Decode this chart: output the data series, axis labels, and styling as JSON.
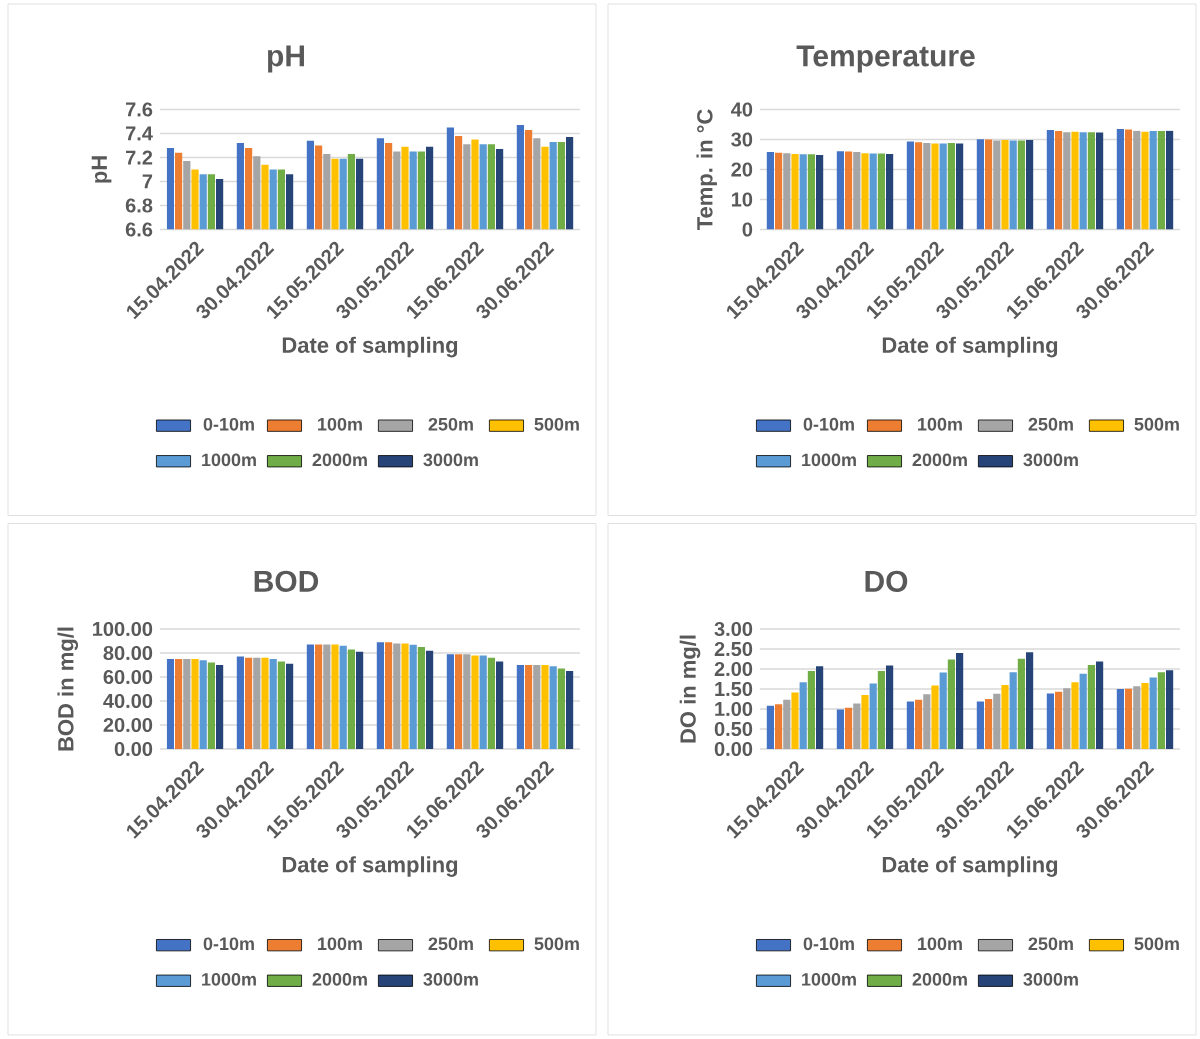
{
  "chart_data": [
    {
      "type": "bar",
      "title": "pH",
      "xlabel": "Date of sampling",
      "ylabel": "pH",
      "categories": [
        "15.04.2022",
        "30.04.2022",
        "15.05.2022",
        "30.05.2022",
        "15.06.2022",
        "30.06.2022"
      ],
      "ylim": [
        6.6,
        7.6
      ],
      "yticks": [
        6.6,
        6.8,
        7,
        7.2,
        7.4,
        7.6
      ],
      "grid": "y",
      "legend": "bottom",
      "series": [
        {
          "name": "0-10m",
          "color": "#4472c4",
          "values": [
            7.28,
            7.32,
            7.34,
            7.36,
            7.45,
            7.47
          ]
        },
        {
          "name": "100m",
          "color": "#ed7d31",
          "values": [
            7.24,
            7.28,
            7.3,
            7.32,
            7.38,
            7.43
          ]
        },
        {
          "name": "250m",
          "color": "#a5a5a5",
          "values": [
            7.17,
            7.21,
            7.23,
            7.25,
            7.31,
            7.36
          ]
        },
        {
          "name": "500m",
          "color": "#ffc000",
          "values": [
            7.1,
            7.14,
            7.19,
            7.29,
            7.35,
            7.29
          ]
        },
        {
          "name": "1000m",
          "color": "#5b9bd5",
          "values": [
            7.06,
            7.1,
            7.19,
            7.25,
            7.31,
            7.33
          ]
        },
        {
          "name": "2000m",
          "color": "#70ad47",
          "values": [
            7.06,
            7.1,
            7.23,
            7.25,
            7.31,
            7.33
          ]
        },
        {
          "name": "3000m",
          "color": "#264478",
          "values": [
            7.02,
            7.06,
            7.19,
            7.29,
            7.27,
            7.37
          ]
        }
      ]
    },
    {
      "type": "bar",
      "title": "Temperature",
      "xlabel": "Date of sampling",
      "ylabel": "Temp. in °C",
      "categories": [
        "15.04.2022",
        "30.04.2022",
        "15.05.2022",
        "30.05.2022",
        "15.06.2022",
        "30.06.2022"
      ],
      "ylim": [
        0,
        40
      ],
      "yticks": [
        0,
        10,
        20,
        30,
        40
      ],
      "grid": "y",
      "legend": "bottom",
      "series": [
        {
          "name": "0-10m",
          "color": "#4472c4",
          "values": [
            25.8,
            26.1,
            29.3,
            30.1,
            33.2,
            33.5
          ]
        },
        {
          "name": "100m",
          "color": "#ed7d31",
          "values": [
            25.6,
            26.0,
            29.1,
            30.0,
            32.8,
            33.3
          ]
        },
        {
          "name": "250m",
          "color": "#a5a5a5",
          "values": [
            25.4,
            25.8,
            28.8,
            29.7,
            32.4,
            32.9
          ]
        },
        {
          "name": "500m",
          "color": "#ffc000",
          "values": [
            25.2,
            25.4,
            28.7,
            29.8,
            32.6,
            32.6
          ]
        },
        {
          "name": "1000m",
          "color": "#5b9bd5",
          "values": [
            25.1,
            25.3,
            28.7,
            29.7,
            32.4,
            32.8
          ]
        },
        {
          "name": "2000m",
          "color": "#70ad47",
          "values": [
            25.1,
            25.3,
            28.8,
            29.7,
            32.4,
            32.8
          ]
        },
        {
          "name": "3000m",
          "color": "#264478",
          "values": [
            24.8,
            25.2,
            28.7,
            29.8,
            32.3,
            32.9
          ]
        }
      ]
    },
    {
      "type": "bar",
      "title": "BOD",
      "xlabel": "Date of sampling",
      "ylabel": "BOD in mg/l",
      "categories": [
        "15.04.2022",
        "30.04.2022",
        "15.05.2022",
        "30.05.2022",
        "15.06.2022",
        "30.06.2022"
      ],
      "ylim": [
        0,
        100
      ],
      "yticks": [
        {
          "value": 0,
          "label": "0.00"
        },
        {
          "value": 20,
          "label": "20.00"
        },
        {
          "value": 40,
          "label": "40.00"
        },
        {
          "value": 60,
          "label": "60.00"
        },
        {
          "value": 80,
          "label": "80.00"
        },
        {
          "value": 100,
          "label": "100.00"
        }
      ],
      "grid": "y",
      "legend": "bottom",
      "series": [
        {
          "name": "0-10m",
          "color": "#4472c4",
          "values": [
            75,
            77,
            87,
            89,
            79,
            70
          ]
        },
        {
          "name": "100m",
          "color": "#ed7d31",
          "values": [
            75,
            76,
            87,
            89,
            79,
            70
          ]
        },
        {
          "name": "250m",
          "color": "#a5a5a5",
          "values": [
            75,
            76,
            87,
            88,
            79,
            70
          ]
        },
        {
          "name": "500m",
          "color": "#ffc000",
          "values": [
            75,
            76,
            87,
            88,
            78,
            70
          ]
        },
        {
          "name": "1000m",
          "color": "#5b9bd5",
          "values": [
            74,
            75,
            86,
            87,
            78,
            69
          ]
        },
        {
          "name": "2000m",
          "color": "#70ad47",
          "values": [
            72,
            73,
            83,
            85,
            76,
            67
          ]
        },
        {
          "name": "3000m",
          "color": "#264478",
          "values": [
            70,
            71,
            81,
            82,
            73,
            65
          ]
        }
      ]
    },
    {
      "type": "bar",
      "title": "DO",
      "xlabel": "Date of sampling",
      "ylabel": "DO in mg/l",
      "categories": [
        "15.04.2022",
        "30.04.2022",
        "15.05.2022",
        "30.05.2022",
        "15.06.2022",
        "30.06.2022"
      ],
      "ylim": [
        0,
        3
      ],
      "yticks": [
        {
          "value": 0,
          "label": "0.00"
        },
        {
          "value": 0.5,
          "label": "0.50"
        },
        {
          "value": 1,
          "label": "1.00"
        },
        {
          "value": 1.5,
          "label": "1.50"
        },
        {
          "value": 2,
          "label": "2.00"
        },
        {
          "value": 2.5,
          "label": "2.50"
        },
        {
          "value": 3,
          "label": "3.00"
        }
      ],
      "grid": "y",
      "legend": "bottom",
      "series": [
        {
          "name": "0-10m",
          "color": "#4472c4",
          "values": [
            1.08,
            0.99,
            1.19,
            1.19,
            1.39,
            1.5
          ]
        },
        {
          "name": "100m",
          "color": "#ed7d31",
          "values": [
            1.12,
            1.03,
            1.23,
            1.25,
            1.43,
            1.51
          ]
        },
        {
          "name": "250m",
          "color": "#a5a5a5",
          "values": [
            1.23,
            1.14,
            1.37,
            1.38,
            1.52,
            1.57
          ]
        },
        {
          "name": "500m",
          "color": "#ffc000",
          "values": [
            1.41,
            1.35,
            1.59,
            1.6,
            1.67,
            1.65
          ]
        },
        {
          "name": "1000m",
          "color": "#5b9bd5",
          "values": [
            1.67,
            1.64,
            1.91,
            1.92,
            1.88,
            1.79
          ]
        },
        {
          "name": "2000m",
          "color": "#70ad47",
          "values": [
            1.95,
            1.95,
            2.24,
            2.26,
            2.1,
            1.92
          ]
        },
        {
          "name": "3000m",
          "color": "#264478",
          "values": [
            2.07,
            2.09,
            2.4,
            2.42,
            2.19,
            1.97
          ]
        }
      ]
    }
  ]
}
